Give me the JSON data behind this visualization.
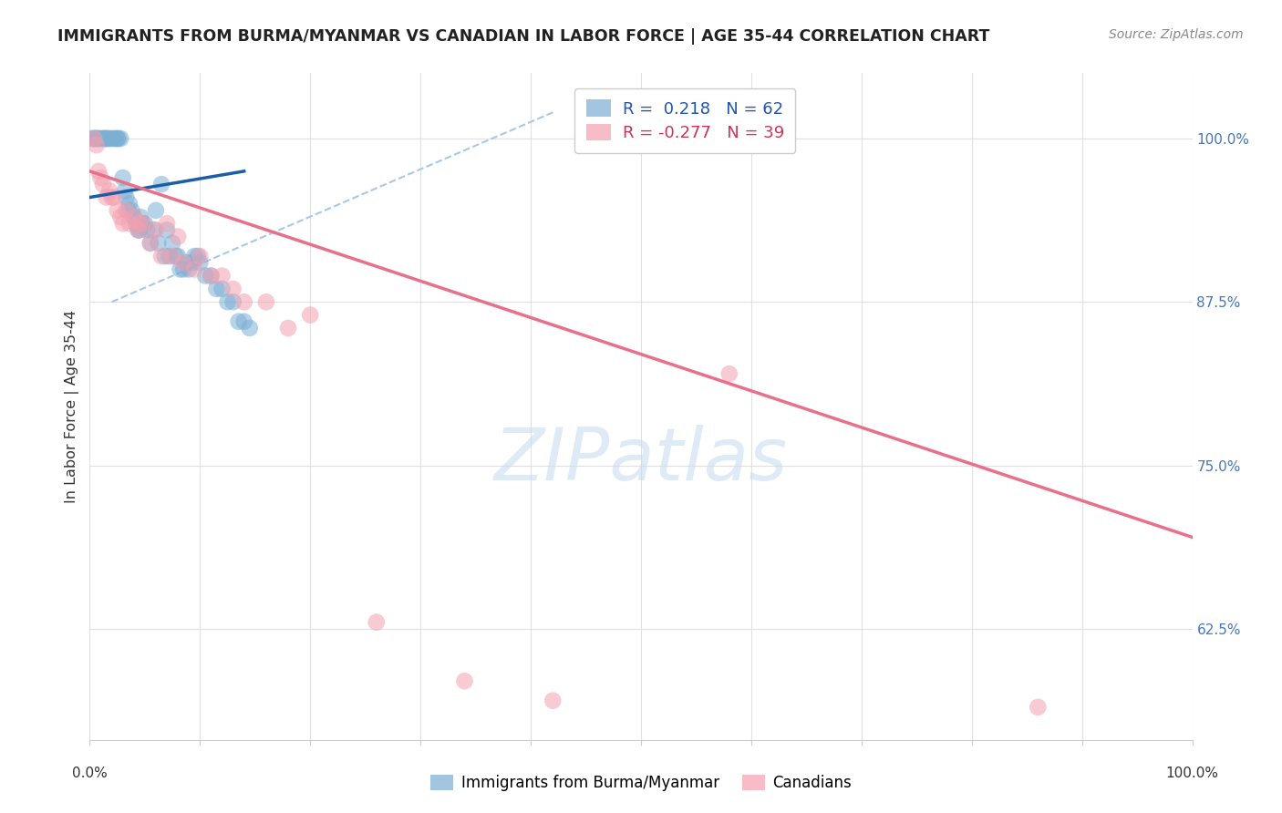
{
  "title": "IMMIGRANTS FROM BURMA/MYANMAR VS CANADIAN IN LABOR FORCE | AGE 35-44 CORRELATION CHART",
  "source": "Source: ZipAtlas.com",
  "ylabel": "In Labor Force | Age 35-44",
  "ytick_values": [
    0.625,
    0.75,
    0.875,
    1.0
  ],
  "ytick_labels": [
    "62.5%",
    "75.0%",
    "87.5%",
    "100.0%"
  ],
  "xlim": [
    0.0,
    1.0
  ],
  "ylim": [
    0.54,
    1.05
  ],
  "legend_r1_blue": "R =  0.218",
  "legend_n1_blue": "N = 62",
  "legend_r2_pink": "R = -0.277",
  "legend_n2_pink": "N = 39",
  "blue_color": "#7BAFD4",
  "pink_color": "#F4A0B0",
  "line_blue_color": "#1A5EA8",
  "line_pink_color": "#E8708A",
  "line_dashed_color": "#A8C8E8",
  "watermark_color": "#C8DCF0",
  "blue_scatter_x": [
    0.003,
    0.005,
    0.007,
    0.008,
    0.01,
    0.012,
    0.013,
    0.015,
    0.016,
    0.018,
    0.02,
    0.022,
    0.024,
    0.025,
    0.026,
    0.028,
    0.03,
    0.032,
    0.033,
    0.035,
    0.036,
    0.038,
    0.04,
    0.042,
    0.044,
    0.045,
    0.046,
    0.048,
    0.05,
    0.052,
    0.055,
    0.058,
    0.06,
    0.062,
    0.065,
    0.068,
    0.07,
    0.072,
    0.075,
    0.078,
    0.08,
    0.082,
    0.085,
    0.088,
    0.09,
    0.093,
    0.095,
    0.098,
    0.1,
    0.105,
    0.11,
    0.115,
    0.12,
    0.125,
    0.13,
    0.135,
    0.14,
    0.145,
    0.002,
    0.004,
    0.006,
    0.014
  ],
  "blue_scatter_y": [
    1.0,
    1.0,
    1.0,
    1.0,
    1.0,
    1.0,
    1.0,
    1.0,
    1.0,
    1.0,
    1.0,
    1.0,
    1.0,
    1.0,
    1.0,
    1.0,
    0.97,
    0.96,
    0.955,
    0.945,
    0.95,
    0.945,
    0.94,
    0.935,
    0.93,
    0.93,
    0.94,
    0.935,
    0.935,
    0.93,
    0.92,
    0.93,
    0.945,
    0.92,
    0.965,
    0.91,
    0.93,
    0.91,
    0.92,
    0.91,
    0.91,
    0.9,
    0.9,
    0.905,
    0.9,
    0.905,
    0.91,
    0.91,
    0.905,
    0.895,
    0.895,
    0.885,
    0.885,
    0.875,
    0.875,
    0.86,
    0.86,
    0.855,
    1.0,
    1.0,
    1.0,
    1.0
  ],
  "pink_scatter_x": [
    0.004,
    0.006,
    0.008,
    0.01,
    0.012,
    0.015,
    0.018,
    0.02,
    0.025,
    0.028,
    0.03,
    0.033,
    0.036,
    0.04,
    0.044,
    0.048,
    0.055,
    0.065,
    0.075,
    0.085,
    0.095,
    0.11,
    0.13,
    0.16,
    0.2,
    0.58,
    0.86,
    0.022,
    0.045,
    0.06,
    0.07,
    0.08,
    0.1,
    0.12,
    0.14,
    0.18,
    0.26,
    0.34,
    0.42
  ],
  "pink_scatter_y": [
    1.0,
    0.995,
    0.975,
    0.97,
    0.965,
    0.955,
    0.96,
    0.955,
    0.945,
    0.94,
    0.935,
    0.945,
    0.935,
    0.94,
    0.93,
    0.935,
    0.92,
    0.91,
    0.91,
    0.905,
    0.9,
    0.895,
    0.885,
    0.875,
    0.865,
    0.82,
    0.565,
    0.955,
    0.935,
    0.93,
    0.935,
    0.925,
    0.91,
    0.895,
    0.875,
    0.855,
    0.63,
    0.585,
    0.57
  ],
  "blue_line_x": [
    0.0,
    0.14
  ],
  "blue_line_y": [
    0.955,
    0.975
  ],
  "pink_line_x": [
    0.0,
    1.0
  ],
  "pink_line_y": [
    0.975,
    0.695
  ],
  "dashed_line_x": [
    0.02,
    0.42
  ],
  "dashed_line_y": [
    0.875,
    1.02
  ],
  "background_color": "#FFFFFF",
  "grid_color": "#E0E0E0"
}
